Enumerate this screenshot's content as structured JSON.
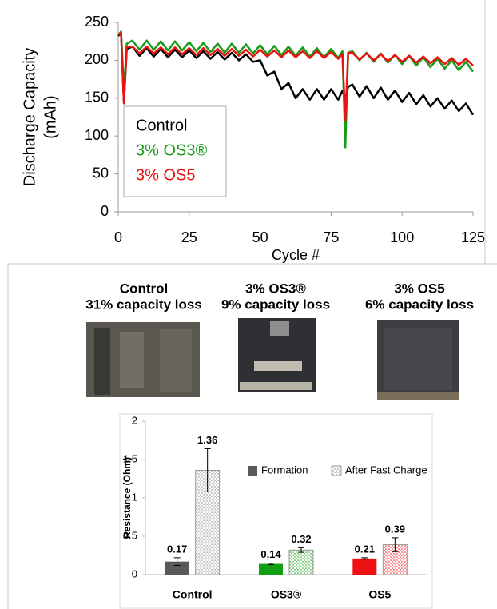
{
  "chart_data": [
    {
      "type": "line",
      "y_label": [
        "Discharge Capacity",
        "(mAh)"
      ],
      "x_label": "Cycle #",
      "x": [
        0,
        1,
        2,
        3,
        5,
        7.5,
        10,
        12.5,
        15,
        17.5,
        20,
        22.5,
        25,
        27.5,
        30,
        32.5,
        35,
        37.5,
        40,
        42.5,
        45,
        47.5,
        50,
        52.5,
        55,
        57.5,
        60,
        62.5,
        65,
        67.5,
        70,
        72.5,
        75,
        77.5,
        79,
        80,
        81,
        82.5,
        85,
        87.5,
        90,
        92.5,
        95,
        97.5,
        100,
        102.5,
        105,
        107.5,
        110,
        112.5,
        115,
        117.5,
        120,
        122.5,
        125
      ],
      "series": [
        {
          "name": "Control",
          "color": "#000000",
          "values": [
            232,
            236,
            145,
            215,
            218,
            206,
            216,
            205,
            215,
            204,
            214,
            204,
            213,
            203,
            212,
            202,
            211,
            201,
            210,
            200,
            208,
            198,
            200,
            180,
            185,
            162,
            170,
            150,
            162,
            148,
            162,
            148,
            162,
            148,
            160,
            150,
            165,
            168,
            152,
            166,
            150,
            164,
            148,
            160,
            145,
            157,
            142,
            154,
            139,
            150,
            136,
            147,
            133,
            143,
            128
          ]
        },
        {
          "name": "3% OS3®",
          "color": "#1a9a1a",
          "values": [
            233,
            238,
            160,
            222,
            226,
            214,
            226,
            214,
            225,
            213,
            225,
            213,
            224,
            212,
            223,
            211,
            222,
            210,
            222,
            210,
            221,
            209,
            220,
            208,
            219,
            207,
            218,
            206,
            217,
            205,
            216,
            204,
            215,
            203,
            212,
            85,
            210,
            212,
            200,
            210,
            198,
            209,
            197,
            207,
            195,
            206,
            193,
            204,
            191,
            202,
            189,
            200,
            187,
            198,
            185
          ]
        },
        {
          "name": "3% OS5",
          "color": "#ee1111",
          "values": [
            234,
            236,
            143,
            218,
            218,
            209,
            218,
            209,
            217,
            208,
            217,
            208,
            216,
            207,
            216,
            207,
            215,
            206,
            215,
            206,
            214,
            205,
            214,
            205,
            213,
            204,
            213,
            204,
            212,
            203,
            212,
            203,
            211,
            202,
            208,
            120,
            210,
            210,
            201,
            209,
            200,
            208,
            199,
            207,
            198,
            206,
            197,
            205,
            196,
            204,
            195,
            203,
            194,
            202,
            193
          ]
        }
      ],
      "xlim": [
        0,
        125
      ],
      "xticks": [
        0,
        25,
        50,
        75,
        100,
        125
      ],
      "ylim": [
        0,
        250
      ],
      "yticks": [
        0,
        50,
        100,
        150,
        200,
        250
      ],
      "legend": "lower left"
    },
    {
      "type": "bar",
      "y_label": "Resistance (Ohm)",
      "categories": [
        "Control",
        "OS3®",
        "OS5"
      ],
      "series": [
        {
          "name": "Formation",
          "fill": "solid",
          "colors": [
            "#595959",
            "#12a012",
            "#ee1111"
          ],
          "values": [
            0.17,
            0.14,
            0.21
          ],
          "errors": [
            0.05,
            0.01,
            0.01
          ]
        },
        {
          "name": "After Fast Charge",
          "fill": "dotted",
          "colors": [
            "#8a8a8a",
            "#12a012",
            "#ee1111"
          ],
          "values": [
            1.36,
            0.32,
            0.39
          ],
          "errors": [
            0.28,
            0.03,
            0.09
          ]
        }
      ],
      "ylim": [
        0,
        2
      ],
      "yticks": [
        0,
        0.5,
        1,
        1.5,
        2
      ]
    }
  ],
  "photos": [
    {
      "title": "Control",
      "subtitle": "31% capacity loss"
    },
    {
      "title": "3% OS3®",
      "subtitle": "9% capacity loss"
    },
    {
      "title": "3% OS5",
      "subtitle": "6% capacity loss"
    }
  ]
}
